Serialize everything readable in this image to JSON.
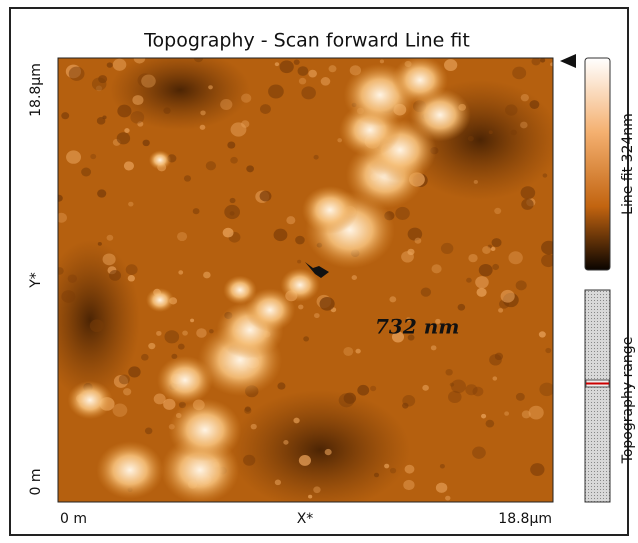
{
  "image": {
    "title": "Topography - Scan forward   Line fit",
    "annotation": "732 nm"
  },
  "x_axis": {
    "labels": [
      "0 m",
      "X*",
      "18.8µm"
    ]
  },
  "y_axis": {
    "labels": [
      "18.8µm",
      "Y*",
      "0 m"
    ]
  },
  "color_scale": {
    "label": "Line fit 324nm"
  },
  "range_slider": {
    "label": "Topography range"
  }
}
